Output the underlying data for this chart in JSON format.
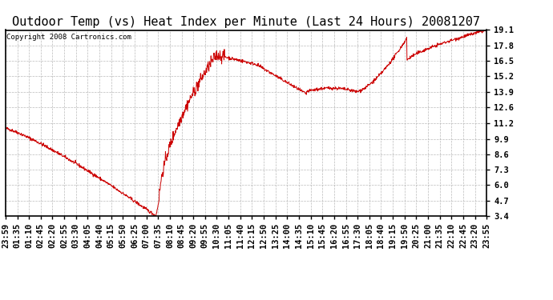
{
  "title": "Outdoor Temp (vs) Heat Index per Minute (Last 24 Hours) 20081207",
  "copyright_text": "Copyright 2008 Cartronics.com",
  "line_color": "#cc0000",
  "background_color": "#ffffff",
  "plot_bg_color": "#ffffff",
  "grid_color": "#aaaaaa",
  "yticks": [
    3.4,
    4.7,
    6.0,
    7.3,
    8.6,
    9.9,
    11.2,
    12.6,
    13.9,
    15.2,
    16.5,
    17.8,
    19.1
  ],
  "xtick_labels": [
    "23:59",
    "01:35",
    "01:10",
    "02:45",
    "02:20",
    "02:55",
    "03:30",
    "04:05",
    "04:40",
    "05:15",
    "05:50",
    "06:25",
    "07:00",
    "07:35",
    "08:10",
    "08:45",
    "09:20",
    "09:55",
    "10:30",
    "11:05",
    "11:40",
    "12:15",
    "12:50",
    "13:25",
    "14:00",
    "14:35",
    "15:10",
    "15:45",
    "16:20",
    "16:55",
    "17:30",
    "18:05",
    "18:40",
    "19:15",
    "19:50",
    "20:25",
    "21:00",
    "21:35",
    "22:10",
    "22:45",
    "23:20",
    "23:55"
  ],
  "ymin": 3.4,
  "ymax": 19.1,
  "title_fontsize": 11,
  "copyright_fontsize": 6.5,
  "tick_fontsize": 7.5
}
